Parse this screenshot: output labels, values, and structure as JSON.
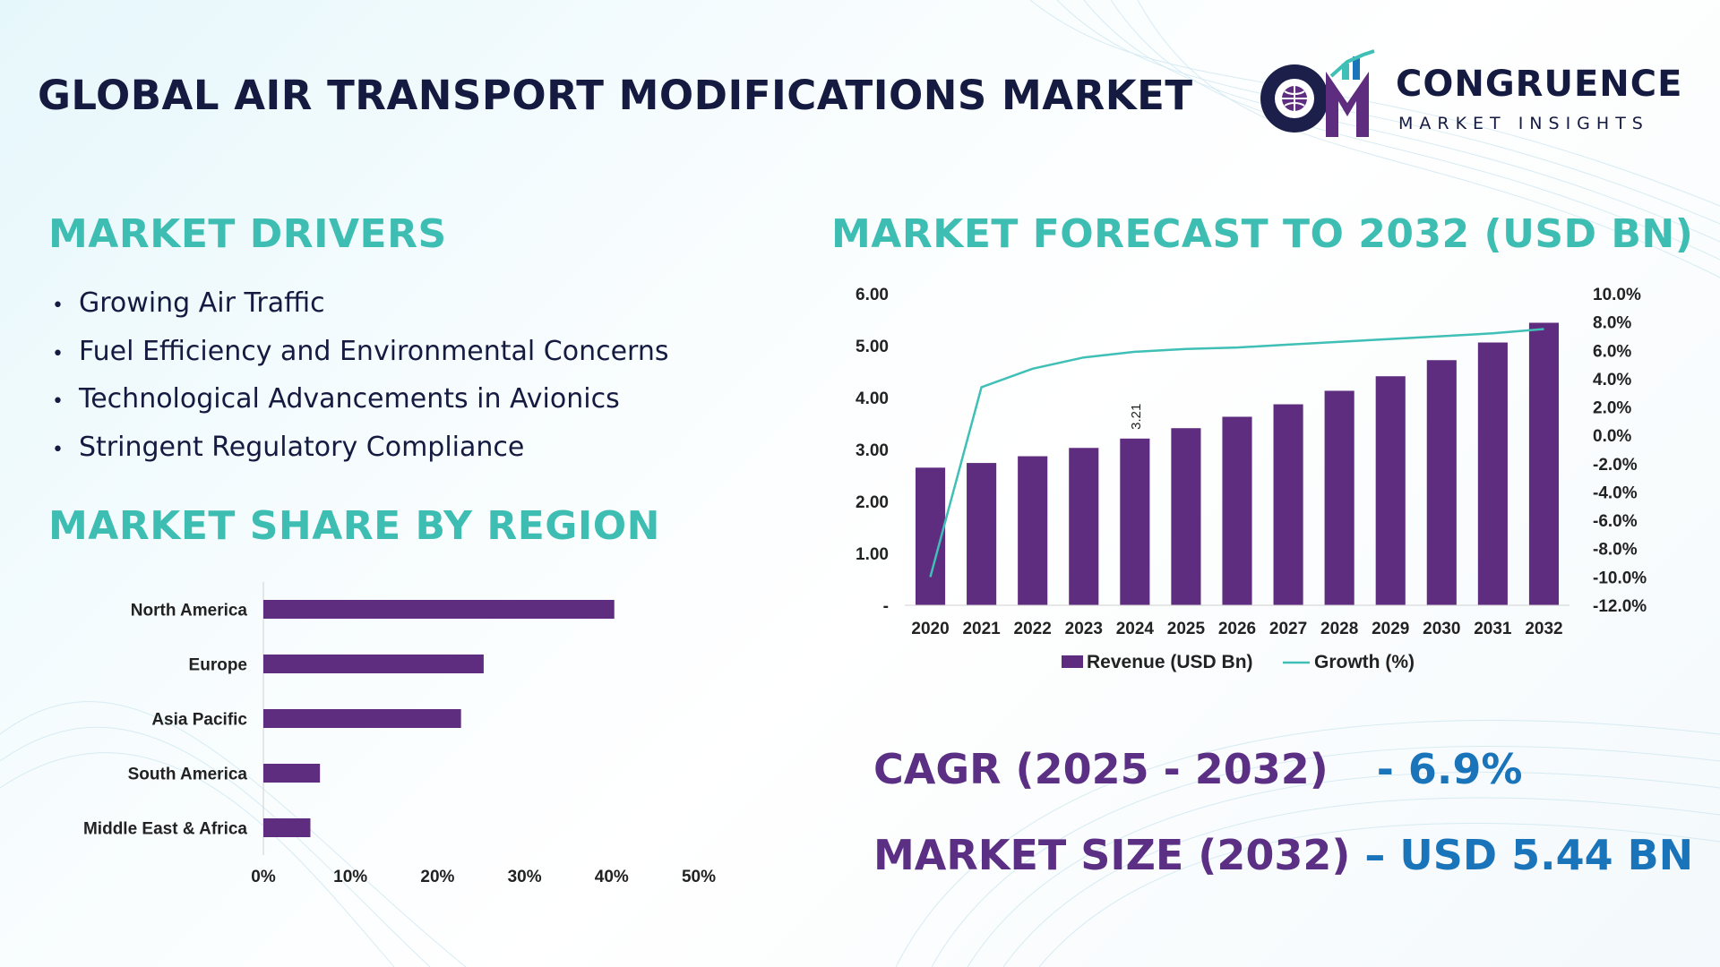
{
  "header": {
    "title": "GLOBAL AIR TRANSPORT MODIFICATIONS MARKET"
  },
  "logo": {
    "name": "CONGRUENCE",
    "tagline": "MARKET INSIGHTS"
  },
  "drivers": {
    "heading": "MARKET DRIVERS",
    "items": [
      "Growing Air Traffic",
      "Fuel Efficiency and Environmental Concerns",
      "Technological Advancements in Avionics",
      "Stringent Regulatory Compliance"
    ]
  },
  "region": {
    "heading": "MARKET SHARE BY REGION"
  },
  "forecast": {
    "heading": "MARKET FORECAST TO 2032 (USD BN)"
  },
  "kpis": {
    "cagr_label": "CAGR (2025 - 2032)",
    "cagr_value": "- 6.9%",
    "size_label": "MARKET SIZE (2032)",
    "size_value": "– USD 5.44 BN"
  },
  "colors": {
    "bar": "#5f2d7f",
    "line": "#3fbfb5",
    "heading": "#3ebdb3",
    "title": "#151a40",
    "kpi_label": "#5a2f84",
    "kpi_value": "#1a74b9"
  },
  "chart_data": [
    {
      "type": "bar",
      "orientation": "horizontal",
      "categories": [
        "North America",
        "Europe",
        "Asia Pacific",
        "South America",
        "Middle East & Africa"
      ],
      "values": [
        40.3,
        25.3,
        22.7,
        6.5,
        5.4
      ],
      "xlim": [
        0,
        50
      ],
      "xticks": [
        "0%",
        "10%",
        "20%",
        "30%",
        "40%",
        "50%"
      ],
      "grid": false
    },
    {
      "type": "bar",
      "categories": [
        "2020",
        "2021",
        "2022",
        "2023",
        "2024",
        "2025",
        "2026",
        "2027",
        "2028",
        "2029",
        "2030",
        "2031",
        "2032"
      ],
      "series": [
        {
          "name": "Revenue (USD Bn)",
          "type": "bar",
          "axis": "left",
          "values": [
            2.65,
            2.74,
            2.87,
            3.03,
            3.21,
            3.41,
            3.63,
            3.87,
            4.13,
            4.41,
            4.72,
            5.06,
            5.44
          ],
          "data_labels": [
            "",
            "",
            "",
            "",
            "3.21",
            "",
            "",
            "",
            "",
            "",
            "",
            "",
            ""
          ]
        },
        {
          "name": "Growth (%)",
          "type": "line",
          "axis": "right",
          "values": [
            -10.0,
            3.4,
            4.7,
            5.5,
            5.9,
            6.1,
            6.2,
            6.4,
            6.6,
            6.8,
            7.0,
            7.2,
            7.5
          ]
        }
      ],
      "ylim": [
        0,
        6
      ],
      "yticks": [
        "-",
        "1.00",
        "2.00",
        "3.00",
        "4.00",
        "5.00",
        "6.00"
      ],
      "y2lim": [
        -12,
        10
      ],
      "y2ticks": [
        "-12.0%",
        "-10.0%",
        "-8.0%",
        "-6.0%",
        "-4.0%",
        "-2.0%",
        "0.0%",
        "2.0%",
        "4.0%",
        "6.0%",
        "8.0%",
        "10.0%"
      ],
      "legend": "bottom",
      "grid": false
    }
  ]
}
